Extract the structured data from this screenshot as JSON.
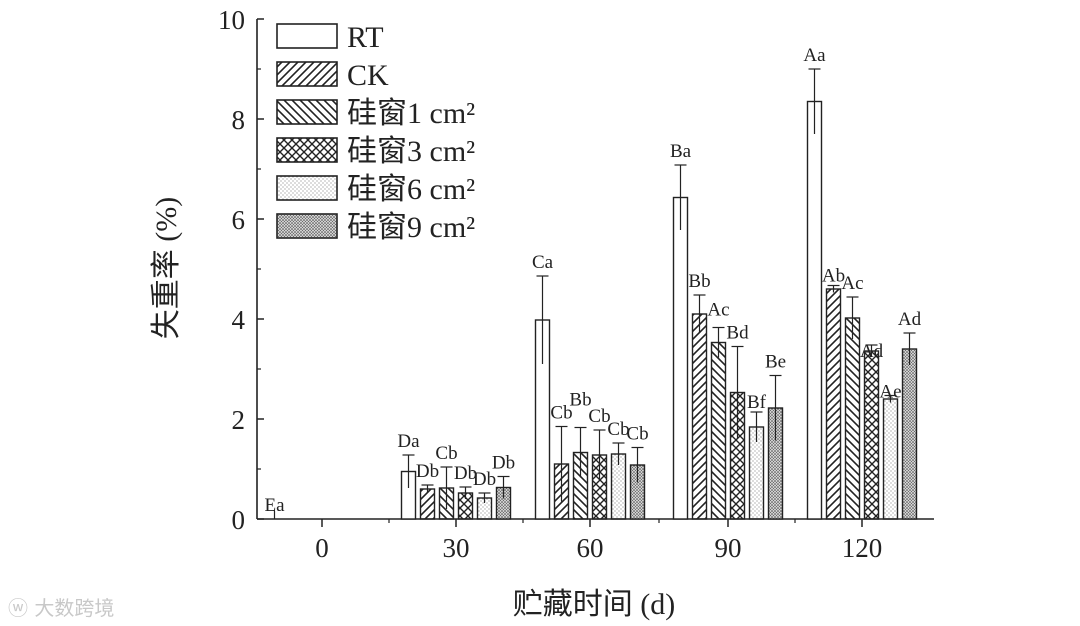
{
  "chart_data": {
    "type": "bar",
    "xlabel": "贮藏时间 (d)",
    "ylabel": "失重率 (%)",
    "ylim": [
      0,
      10
    ],
    "yticks": [
      0,
      2,
      4,
      6,
      8,
      10
    ],
    "categories": [
      "0",
      "30",
      "60",
      "90",
      "120"
    ],
    "legend_position": "top-left",
    "series": [
      {
        "name": "RT",
        "pattern": "none",
        "values": [
          0,
          0.95,
          3.98,
          6.43,
          8.35
        ],
        "errors": [
          0,
          0.33,
          0.88,
          0.65,
          0.65
        ],
        "labels": [
          "Ea",
          "Da",
          "Ca",
          "Ba",
          "Aa"
        ]
      },
      {
        "name": "CK",
        "pattern": "diag-right",
        "values": [
          null,
          0.6,
          1.1,
          4.1,
          4.6
        ],
        "errors": [
          null,
          0.08,
          0.75,
          0.38,
          0.07
        ],
        "labels": [
          "",
          "Db",
          "Cb",
          "Bb",
          "Ab"
        ]
      },
      {
        "name": "硅窗1 cm²",
        "pattern": "diag-left",
        "values": [
          null,
          0.62,
          1.33,
          3.53,
          4.02
        ],
        "errors": [
          null,
          0.42,
          0.5,
          0.3,
          0.42
        ],
        "labels": [
          "",
          "Cb",
          "Bb",
          "Ac",
          "Ac"
        ]
      },
      {
        "name": "硅窗3 cm²",
        "pattern": "cross",
        "values": [
          null,
          0.52,
          1.28,
          2.53,
          3.36
        ],
        "errors": [
          null,
          0.12,
          0.5,
          0.92,
          0.12
        ],
        "labels": [
          "",
          "Db",
          "Cb",
          "Bd",
          "Ad"
        ]
      },
      {
        "name": "硅窗6 cm²",
        "pattern": "dots",
        "values": [
          null,
          0.42,
          1.3,
          1.84,
          2.4
        ],
        "errors": [
          null,
          0.1,
          0.22,
          0.3,
          0.07
        ],
        "labels": [
          "",
          "Db",
          "Cb",
          "Bf",
          "Ae"
        ]
      },
      {
        "name": "硅窗9 cm²",
        "pattern": "dense-dots",
        "values": [
          null,
          0.63,
          1.08,
          2.22,
          3.4
        ],
        "errors": [
          null,
          0.22,
          0.35,
          0.65,
          0.32
        ],
        "labels": [
          "",
          "Db",
          "Cb",
          "Be",
          "Ad"
        ]
      }
    ]
  },
  "watermark": "大数跨境"
}
